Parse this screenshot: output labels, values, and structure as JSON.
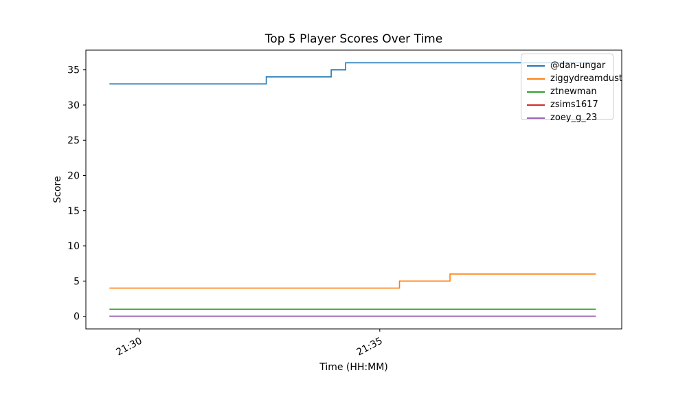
{
  "chart_data": {
    "type": "line",
    "line_shape": "step-post",
    "title": "Top 5 Player Scores Over Time",
    "xlabel": "Time (HH:MM)",
    "ylabel": "Score",
    "x_unit_note": "x values are minutes after 21:00, estimated from axis ticks",
    "xlim": [
      28.89,
      40.03
    ],
    "ylim": [
      -1.8,
      37.8
    ],
    "x_ticks": [
      {
        "value": 30,
        "label": "21:30"
      },
      {
        "value": 35,
        "label": "21:35"
      }
    ],
    "y_ticks": [
      0,
      5,
      10,
      15,
      20,
      25,
      30,
      35
    ],
    "grid": false,
    "legend_position": "upper right",
    "series": [
      {
        "name": "@dan-ungar",
        "color": "#1f77b4",
        "points": [
          [
            29.38,
            33
          ],
          [
            32.64,
            34
          ],
          [
            33.99,
            35
          ],
          [
            34.29,
            36
          ],
          [
            39.49,
            36
          ]
        ]
      },
      {
        "name": "ziggydreamdust",
        "color": "#ff7f0e",
        "points": [
          [
            29.38,
            4
          ],
          [
            35.41,
            5
          ],
          [
            36.46,
            6
          ],
          [
            39.49,
            6
          ]
        ]
      },
      {
        "name": "ztnewman",
        "color": "#2ca02c",
        "points": [
          [
            29.38,
            1
          ],
          [
            39.49,
            1
          ]
        ]
      },
      {
        "name": "zsims1617",
        "color": "#d62728",
        "points": [
          [
            29.38,
            0
          ],
          [
            39.49,
            0
          ]
        ]
      },
      {
        "name": "zoey_g_23",
        "color": "#9467bd",
        "points": [
          [
            29.38,
            0
          ],
          [
            39.49,
            0
          ]
        ]
      }
    ]
  }
}
